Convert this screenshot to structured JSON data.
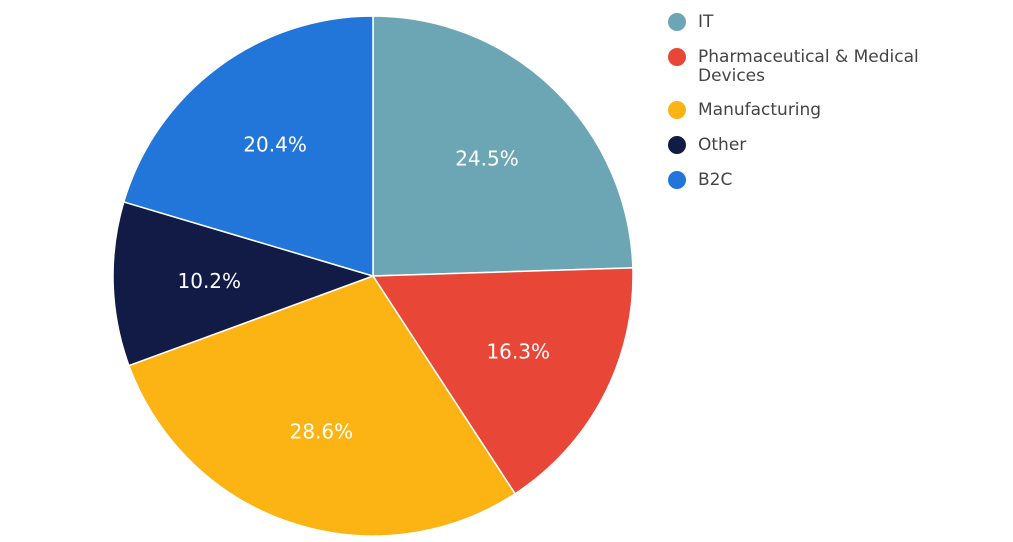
{
  "chart_data": {
    "type": "pie",
    "labels": [
      "IT",
      "Pharmaceutical & Medical Devices",
      "Manufacturing",
      "Other",
      "B2C"
    ],
    "legend_lines": [
      [
        "IT"
      ],
      [
        "Pharmaceutical & Medical",
        "Devices"
      ],
      [
        "Manufacturing"
      ],
      [
        "Other"
      ],
      [
        "B2C"
      ]
    ],
    "values": [
      24.5,
      16.3,
      28.6,
      10.2,
      20.4
    ],
    "value_labels": [
      "24.5%",
      "16.3%",
      "28.6%",
      "10.2%",
      "20.4%"
    ],
    "colors": [
      "#6ca6b5",
      "#e84737",
      "#fcb415",
      "#121a46",
      "#2276d9"
    ],
    "start_angle": "12 o'clock",
    "direction": "clockwise",
    "legend_position": "top-right"
  }
}
